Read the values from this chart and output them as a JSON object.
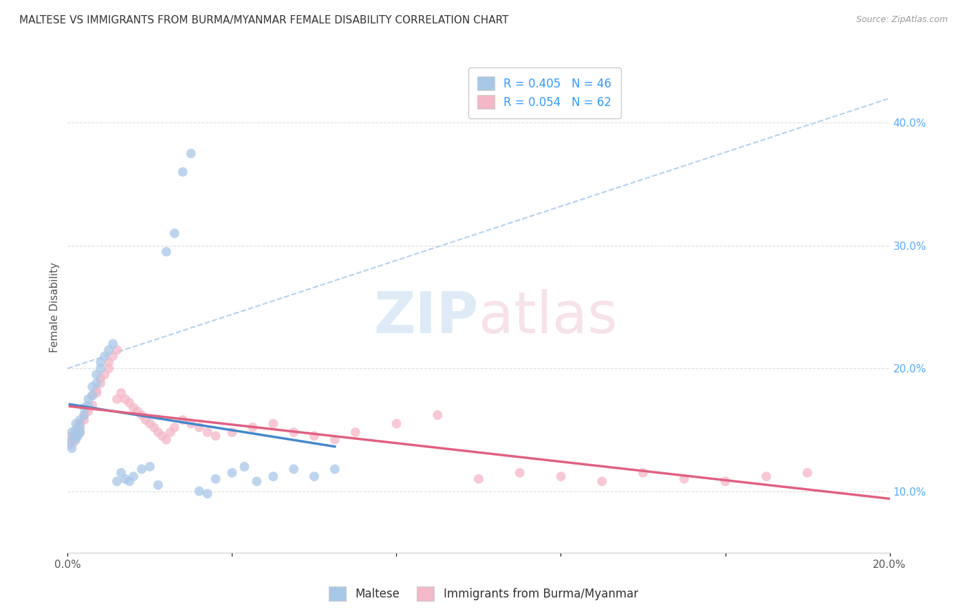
{
  "title": "MALTESE VS IMMIGRANTS FROM BURMA/MYANMAR FEMALE DISABILITY CORRELATION CHART",
  "source": "Source: ZipAtlas.com",
  "ylabel": "Female Disability",
  "xlim": [
    0.0,
    0.2
  ],
  "ylim": [
    0.05,
    0.45
  ],
  "blue_color": "#a8c8e8",
  "pink_color": "#f4b8c8",
  "blue_line_color": "#4488cc",
  "pink_line_color": "#e06080",
  "ref_line_color": "#aaccee",
  "label1": "Maltese",
  "label2": "Immigrants from Burma/Myanmar",
  "maltese_x": [
    0.0005,
    0.001,
    0.001,
    0.0015,
    0.002,
    0.002,
    0.002,
    0.0025,
    0.003,
    0.003,
    0.003,
    0.004,
    0.004,
    0.005,
    0.005,
    0.006,
    0.006,
    0.007,
    0.007,
    0.008,
    0.008,
    0.009,
    0.01,
    0.011,
    0.012,
    0.013,
    0.014,
    0.015,
    0.016,
    0.018,
    0.02,
    0.022,
    0.024,
    0.026,
    0.028,
    0.03,
    0.032,
    0.034,
    0.036,
    0.04,
    0.043,
    0.046,
    0.05,
    0.055,
    0.06,
    0.065
  ],
  "maltese_y": [
    0.14,
    0.135,
    0.148,
    0.145,
    0.142,
    0.15,
    0.155,
    0.145,
    0.148,
    0.152,
    0.158,
    0.162,
    0.168,
    0.17,
    0.175,
    0.178,
    0.185,
    0.188,
    0.195,
    0.2,
    0.205,
    0.21,
    0.215,
    0.22,
    0.108,
    0.115,
    0.11,
    0.108,
    0.112,
    0.118,
    0.12,
    0.105,
    0.295,
    0.31,
    0.36,
    0.375,
    0.1,
    0.098,
    0.11,
    0.115,
    0.12,
    0.108,
    0.112,
    0.118,
    0.112,
    0.118
  ],
  "burma_x": [
    0.0005,
    0.001,
    0.001,
    0.0015,
    0.002,
    0.002,
    0.0025,
    0.003,
    0.003,
    0.004,
    0.004,
    0.005,
    0.005,
    0.006,
    0.006,
    0.007,
    0.007,
    0.008,
    0.008,
    0.009,
    0.01,
    0.01,
    0.011,
    0.012,
    0.012,
    0.013,
    0.014,
    0.015,
    0.016,
    0.017,
    0.018,
    0.019,
    0.02,
    0.021,
    0.022,
    0.023,
    0.024,
    0.025,
    0.026,
    0.028,
    0.03,
    0.032,
    0.034,
    0.036,
    0.04,
    0.045,
    0.05,
    0.055,
    0.06,
    0.065,
    0.07,
    0.08,
    0.09,
    0.1,
    0.11,
    0.12,
    0.13,
    0.14,
    0.15,
    0.16,
    0.17,
    0.18
  ],
  "burma_y": [
    0.138,
    0.142,
    0.145,
    0.14,
    0.145,
    0.148,
    0.152,
    0.148,
    0.155,
    0.158,
    0.162,
    0.165,
    0.168,
    0.17,
    0.178,
    0.18,
    0.182,
    0.188,
    0.192,
    0.195,
    0.2,
    0.205,
    0.21,
    0.215,
    0.175,
    0.18,
    0.175,
    0.172,
    0.168,
    0.165,
    0.162,
    0.158,
    0.155,
    0.152,
    0.148,
    0.145,
    0.142,
    0.148,
    0.152,
    0.158,
    0.155,
    0.152,
    0.148,
    0.145,
    0.148,
    0.152,
    0.155,
    0.148,
    0.145,
    0.142,
    0.148,
    0.155,
    0.162,
    0.11,
    0.115,
    0.112,
    0.108,
    0.115,
    0.11,
    0.108,
    0.112,
    0.115
  ]
}
